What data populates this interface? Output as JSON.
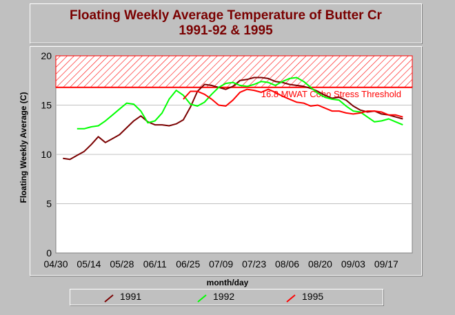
{
  "chart_data": {
    "type": "line",
    "title": [
      "Floating Weekly Average Temperature of Butter Cr",
      "1991-92 & 1995"
    ],
    "xlabel": "month/day",
    "ylabel": "Floating Weekly Average (C)",
    "x_ticks": [
      "04/30",
      "05/14",
      "05/28",
      "06/11",
      "06/25",
      "07/09",
      "07/23",
      "08/06",
      "08/20",
      "09/03",
      "09/17"
    ],
    "x_tick_day_offsets": [
      0,
      14,
      28,
      42,
      56,
      70,
      84,
      98,
      112,
      126,
      140
    ],
    "x_range_day_offsets": [
      0,
      151
    ],
    "y_ticks": [
      0,
      5,
      10,
      15,
      20
    ],
    "ylim": [
      0,
      20
    ],
    "grid": true,
    "threshold": {
      "value": 16.8,
      "label": "16.8 MWAT Coho Stress Threshold",
      "color": "#ff0000",
      "hatch_upper": 20
    },
    "series": [
      {
        "name": "1991",
        "color": "#7a0000",
        "points": [
          [
            3,
            9.6
          ],
          [
            6,
            9.5
          ],
          [
            9,
            9.9
          ],
          [
            12,
            10.3
          ],
          [
            15,
            11.0
          ],
          [
            18,
            11.8
          ],
          [
            21,
            11.2
          ],
          [
            24,
            11.6
          ],
          [
            27,
            12.0
          ],
          [
            30,
            12.7
          ],
          [
            33,
            13.4
          ],
          [
            36,
            13.9
          ],
          [
            39,
            13.3
          ],
          [
            42,
            13.0
          ],
          [
            45,
            13.0
          ],
          [
            48,
            12.9
          ],
          [
            51,
            13.1
          ],
          [
            54,
            13.5
          ],
          [
            57,
            14.8
          ],
          [
            60,
            16.4
          ],
          [
            63,
            17.1
          ],
          [
            66,
            17.0
          ],
          [
            69,
            16.8
          ],
          [
            72,
            16.6
          ],
          [
            75,
            16.9
          ],
          [
            78,
            17.5
          ],
          [
            81,
            17.6
          ],
          [
            84,
            17.8
          ],
          [
            87,
            17.8
          ],
          [
            90,
            17.7
          ],
          [
            93,
            17.4
          ],
          [
            96,
            17.3
          ],
          [
            99,
            17.1
          ],
          [
            102,
            17.0
          ],
          [
            105,
            16.9
          ],
          [
            108,
            16.7
          ],
          [
            111,
            16.4
          ],
          [
            114,
            16.0
          ],
          [
            117,
            15.7
          ],
          [
            120,
            15.8
          ],
          [
            123,
            15.5
          ],
          [
            126,
            14.9
          ],
          [
            129,
            14.5
          ],
          [
            132,
            14.3
          ],
          [
            135,
            14.4
          ],
          [
            138,
            14.1
          ],
          [
            141,
            14.0
          ],
          [
            144,
            13.8
          ],
          [
            147,
            13.6
          ]
        ]
      },
      {
        "name": "1992",
        "color": "#00ff00",
        "points": [
          [
            9,
            12.6
          ],
          [
            12,
            12.6
          ],
          [
            15,
            12.8
          ],
          [
            18,
            12.9
          ],
          [
            21,
            13.4
          ],
          [
            24,
            14.0
          ],
          [
            27,
            14.6
          ],
          [
            30,
            15.2
          ],
          [
            33,
            15.1
          ],
          [
            36,
            14.4
          ],
          [
            39,
            13.2
          ],
          [
            42,
            13.4
          ],
          [
            45,
            14.2
          ],
          [
            48,
            15.6
          ],
          [
            51,
            16.5
          ],
          [
            54,
            16.0
          ],
          [
            57,
            15.1
          ],
          [
            60,
            14.9
          ],
          [
            63,
            15.3
          ],
          [
            66,
            16.1
          ],
          [
            69,
            16.8
          ],
          [
            72,
            17.2
          ],
          [
            75,
            17.3
          ],
          [
            78,
            17.0
          ],
          [
            81,
            16.9
          ],
          [
            84,
            17.1
          ],
          [
            87,
            17.4
          ],
          [
            90,
            17.3
          ],
          [
            93,
            17.0
          ],
          [
            96,
            17.4
          ],
          [
            99,
            17.7
          ],
          [
            102,
            17.8
          ],
          [
            105,
            17.4
          ],
          [
            108,
            16.8
          ],
          [
            111,
            16.2
          ],
          [
            114,
            15.8
          ],
          [
            117,
            15.6
          ],
          [
            120,
            15.5
          ],
          [
            123,
            14.9
          ],
          [
            126,
            14.4
          ],
          [
            129,
            14.3
          ],
          [
            132,
            13.8
          ],
          [
            135,
            13.3
          ],
          [
            138,
            13.4
          ],
          [
            141,
            13.6
          ],
          [
            144,
            13.3
          ],
          [
            147,
            13.0
          ]
        ]
      },
      {
        "name": "1995",
        "color": "#ff0000",
        "points": [
          [
            54,
            15.6
          ],
          [
            57,
            16.4
          ],
          [
            60,
            16.4
          ],
          [
            63,
            16.1
          ],
          [
            66,
            15.6
          ],
          [
            69,
            15.0
          ],
          [
            72,
            14.9
          ],
          [
            75,
            15.5
          ],
          [
            78,
            16.3
          ],
          [
            81,
            16.6
          ],
          [
            84,
            16.5
          ],
          [
            87,
            16.3
          ],
          [
            90,
            16.6
          ],
          [
            93,
            16.3
          ],
          [
            96,
            15.9
          ],
          [
            99,
            15.6
          ],
          [
            102,
            15.3
          ],
          [
            105,
            15.2
          ],
          [
            108,
            14.9
          ],
          [
            111,
            15.0
          ],
          [
            114,
            14.7
          ],
          [
            117,
            14.4
          ],
          [
            120,
            14.4
          ],
          [
            123,
            14.2
          ],
          [
            126,
            14.1
          ],
          [
            129,
            14.2
          ],
          [
            132,
            14.4
          ],
          [
            135,
            14.4
          ],
          [
            138,
            14.3
          ],
          [
            141,
            14.0
          ],
          [
            144,
            14.0
          ],
          [
            147,
            13.8
          ]
        ]
      }
    ]
  }
}
